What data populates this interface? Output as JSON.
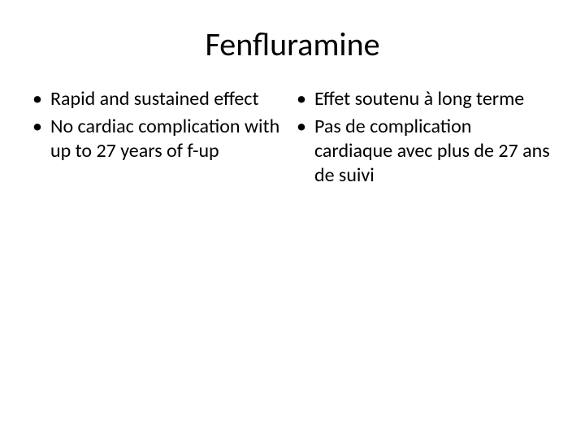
{
  "slide": {
    "title": "Fenfluramine",
    "title_fontsize": 40,
    "body_fontsize": 24,
    "background_color": "#ffffff",
    "text_color": "#000000",
    "bullet_char": "•",
    "columns": [
      {
        "lang": "en",
        "items": [
          "Rapid and sustained effect",
          "No cardiac complication with up to 27 years of f-up"
        ]
      },
      {
        "lang": "fr",
        "items": [
          "Effet soutenu à long terme",
          "Pas de complication cardiaque avec plus de 27 ans de suivi"
        ]
      }
    ]
  }
}
